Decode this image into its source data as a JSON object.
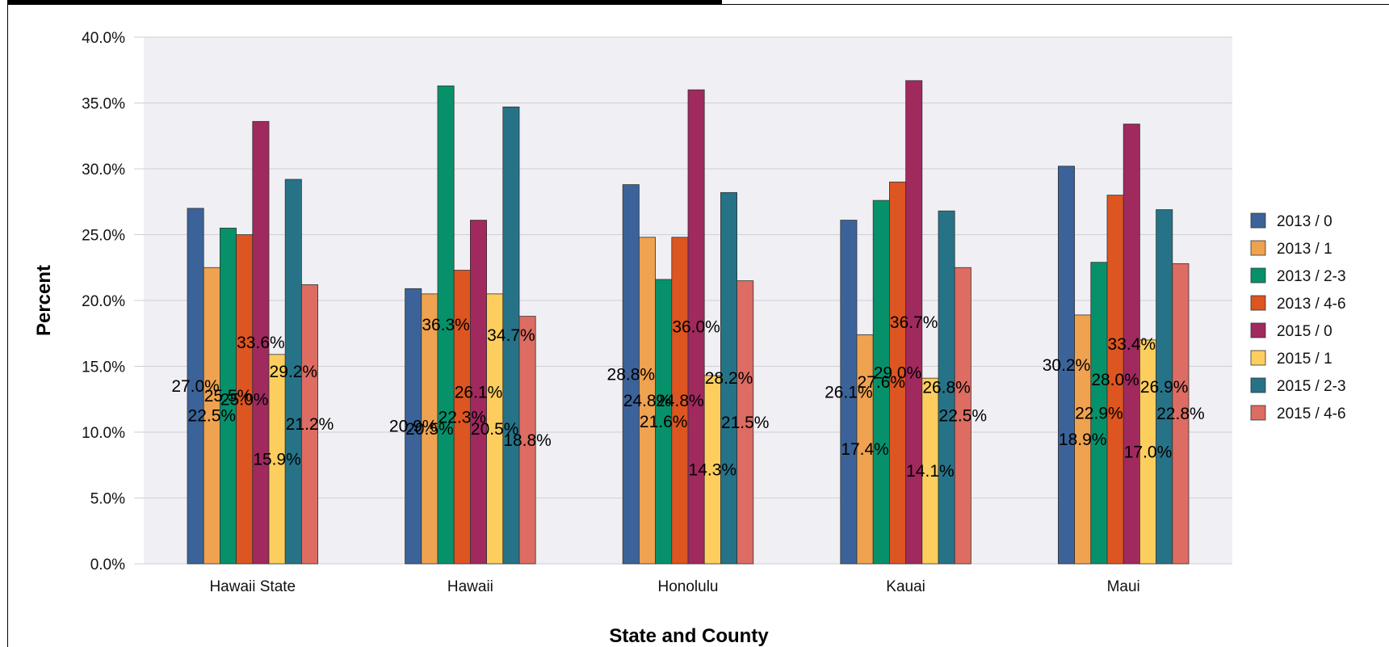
{
  "chart_data": {
    "type": "bar",
    "title": "",
    "xlabel": "State and County",
    "ylabel": "Percent",
    "ylim": [
      0,
      40
    ],
    "y_ticks": [
      "0.0%",
      "5.0%",
      "10.0%",
      "15.0%",
      "20.0%",
      "25.0%",
      "30.0%",
      "35.0%",
      "40.0%"
    ],
    "grid": true,
    "legend_position": "right",
    "categories": [
      "Hawaii State",
      "Hawaii",
      "Honolulu",
      "Kauai",
      "Maui"
    ],
    "series": [
      {
        "name": "2013 / 0",
        "color": "#3B6399",
        "values": [
          27.0,
          20.9,
          28.8,
          26.1,
          30.2
        ],
        "labels": [
          "27.0%",
          "20.9%",
          "28.8%",
          "26.1%",
          "30.2%"
        ]
      },
      {
        "name": "2013 / 1",
        "color": "#EFA24F",
        "values": [
          22.5,
          20.5,
          24.8,
          17.4,
          18.9
        ],
        "labels": [
          "22.5%",
          "20.5%",
          "24.8%",
          "17.4%",
          "18.9%"
        ]
      },
      {
        "name": "2013 / 2-3",
        "color": "#06916B",
        "values": [
          25.5,
          36.3,
          21.6,
          27.6,
          22.9
        ],
        "labels": [
          "25.5%",
          "36.3%",
          "21.6%",
          "27.6%",
          "22.9%"
        ]
      },
      {
        "name": "2013 / 4-6",
        "color": "#DD5520",
        "values": [
          25.0,
          22.3,
          24.8,
          29.0,
          28.0
        ],
        "labels": [
          "25.0%",
          "22.3%",
          "24.8%",
          "29.0%",
          "28.0%"
        ]
      },
      {
        "name": "2015 / 0",
        "color": "#A0295E",
        "values": [
          33.6,
          26.1,
          36.0,
          36.7,
          33.4
        ],
        "labels": [
          "33.6%",
          "26.1%",
          "36.0%",
          "36.7%",
          "33.4%"
        ]
      },
      {
        "name": "2015 / 1",
        "color": "#FDCE5D",
        "values": [
          15.9,
          20.5,
          14.3,
          14.1,
          17.0
        ],
        "labels": [
          "15.9%",
          "20.5%",
          "14.3%",
          "14.1%",
          "17.0%"
        ]
      },
      {
        "name": "2015 / 2-3",
        "color": "#267388",
        "values": [
          29.2,
          34.7,
          28.2,
          26.8,
          26.9
        ],
        "labels": [
          "29.2%",
          "34.7%",
          "28.2%",
          "26.8%",
          "26.9%"
        ]
      },
      {
        "name": "2015 / 4-6",
        "color": "#DD6C62",
        "values": [
          21.2,
          18.8,
          21.5,
          22.5,
          22.8
        ],
        "labels": [
          "21.2%",
          "18.8%",
          "21.5%",
          "22.5%",
          "22.8%"
        ]
      }
    ]
  }
}
